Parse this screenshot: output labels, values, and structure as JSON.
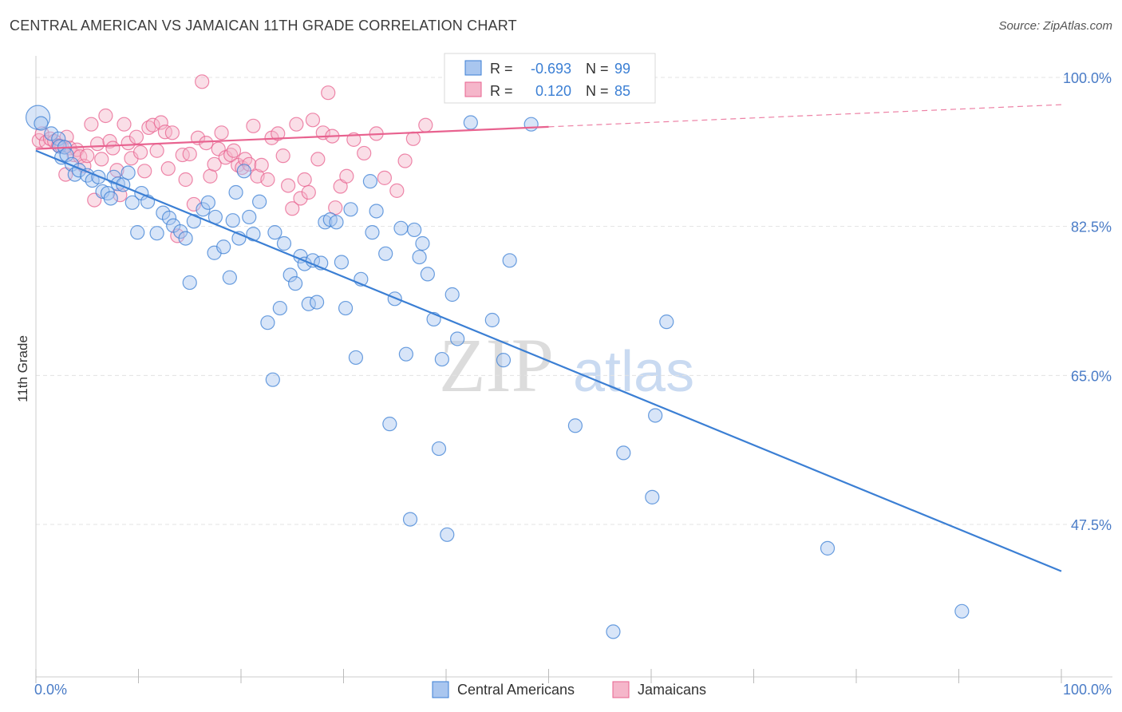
{
  "title": "CENTRAL AMERICAN VS JAMAICAN 11TH GRADE CORRELATION CHART",
  "source": "Source: ZipAtlas.com",
  "watermark": {
    "zip": "ZIP",
    "atlas": "atlas"
  },
  "colors": {
    "blue": "#3b7fd4",
    "pink": "#e8628f",
    "blue_fill": "#a9c6ef",
    "pink_fill": "#f5b6ca",
    "tick_label": "#4a7cc7"
  },
  "chart_data": {
    "type": "scatter",
    "xlabel": "",
    "ylabel": "11th Grade",
    "xlim": [
      0,
      100
    ],
    "ylim": [
      30,
      100
    ],
    "x_tick_labels": [
      "0.0%",
      "100.0%"
    ],
    "y_ticks": [
      47.5,
      65.0,
      82.5,
      100.0
    ],
    "y_tick_labels": [
      "47.5%",
      "65.0%",
      "82.5%",
      "100.0%"
    ],
    "grid": true,
    "legend_top": [
      {
        "r_label": "R =",
        "r_value": "-0.693",
        "n_label": "N =",
        "n_value": "99"
      },
      {
        "r_label": "R =",
        "r_value": "0.120",
        "n_label": "N =",
        "n_value": "85"
      }
    ],
    "legend_bottom": [
      "Central Americans",
      "Jamaicans"
    ],
    "series": [
      {
        "name": "Central Americans",
        "color": "#3b7fd4",
        "trend": {
          "x": [
            0,
            100
          ],
          "y": [
            91.4,
            42.0
          ]
        },
        "points": [
          [
            0.2,
            95.3
          ],
          [
            0.5,
            94.6
          ],
          [
            1.5,
            93.4
          ],
          [
            2.2,
            92.8
          ],
          [
            2.3,
            91.9
          ],
          [
            2.5,
            90.6
          ],
          [
            2.8,
            91.8
          ],
          [
            3.0,
            90.9
          ],
          [
            3.5,
            89.8
          ],
          [
            3.8,
            88.6
          ],
          [
            4.2,
            89.1
          ],
          [
            5.0,
            88.5
          ],
          [
            5.5,
            87.9
          ],
          [
            6.1,
            88.3
          ],
          [
            6.5,
            86.6
          ],
          [
            7.0,
            86.4
          ],
          [
            7.3,
            85.8
          ],
          [
            7.6,
            88.3
          ],
          [
            8.0,
            87.5
          ],
          [
            8.5,
            87.4
          ],
          [
            9.0,
            88.8
          ],
          [
            9.4,
            85.3
          ],
          [
            9.9,
            81.8
          ],
          [
            10.3,
            86.4
          ],
          [
            10.9,
            85.4
          ],
          [
            11.8,
            81.7
          ],
          [
            12.4,
            84.1
          ],
          [
            13.0,
            83.5
          ],
          [
            13.4,
            82.6
          ],
          [
            14.1,
            81.9
          ],
          [
            14.6,
            81.1
          ],
          [
            15.0,
            75.9
          ],
          [
            15.4,
            83.1
          ],
          [
            16.3,
            84.5
          ],
          [
            16.8,
            85.3
          ],
          [
            17.4,
            79.4
          ],
          [
            17.5,
            83.6
          ],
          [
            18.3,
            80.1
          ],
          [
            18.9,
            76.5
          ],
          [
            19.2,
            83.2
          ],
          [
            19.5,
            86.5
          ],
          [
            19.8,
            81.1
          ],
          [
            20.3,
            89.0
          ],
          [
            20.8,
            83.6
          ],
          [
            21.2,
            81.6
          ],
          [
            21.8,
            85.4
          ],
          [
            22.6,
            71.2
          ],
          [
            23.1,
            64.5
          ],
          [
            23.3,
            81.8
          ],
          [
            23.8,
            72.9
          ],
          [
            24.2,
            80.5
          ],
          [
            24.8,
            76.8
          ],
          [
            25.3,
            75.8
          ],
          [
            25.8,
            79.0
          ],
          [
            26.2,
            78.1
          ],
          [
            26.6,
            73.4
          ],
          [
            27.0,
            78.5
          ],
          [
            27.4,
            73.6
          ],
          [
            27.8,
            78.2
          ],
          [
            28.2,
            83.0
          ],
          [
            28.7,
            83.3
          ],
          [
            29.3,
            83.0
          ],
          [
            29.8,
            78.3
          ],
          [
            30.2,
            72.9
          ],
          [
            30.7,
            84.5
          ],
          [
            31.2,
            67.1
          ],
          [
            31.7,
            76.3
          ],
          [
            32.6,
            87.8
          ],
          [
            32.8,
            81.8
          ],
          [
            33.2,
            84.3
          ],
          [
            34.1,
            79.3
          ],
          [
            34.5,
            59.3
          ],
          [
            35.0,
            74.0
          ],
          [
            35.6,
            82.3
          ],
          [
            36.1,
            67.5
          ],
          [
            36.5,
            48.1
          ],
          [
            36.9,
            82.1
          ],
          [
            37.4,
            78.9
          ],
          [
            37.7,
            80.5
          ],
          [
            38.2,
            76.9
          ],
          [
            38.8,
            71.6
          ],
          [
            39.3,
            56.4
          ],
          [
            39.6,
            66.9
          ],
          [
            40.1,
            46.3
          ],
          [
            40.6,
            74.5
          ],
          [
            41.1,
            69.3
          ],
          [
            42.4,
            94.7
          ],
          [
            44.5,
            71.5
          ],
          [
            45.6,
            66.8
          ],
          [
            46.2,
            78.5
          ],
          [
            48.3,
            94.5
          ],
          [
            49.0,
            99.0
          ],
          [
            52.6,
            59.1
          ],
          [
            57.3,
            55.9
          ],
          [
            60.1,
            50.7
          ],
          [
            60.4,
            60.3
          ],
          [
            61.5,
            71.3
          ],
          [
            77.2,
            44.7
          ],
          [
            90.3,
            37.3
          ],
          [
            56.3,
            34.9
          ]
        ]
      },
      {
        "name": "Jamaicans",
        "color": "#e8628f",
        "trend": {
          "x": [
            0,
            50
          ],
          "y": [
            91.6,
            94.2
          ]
        },
        "trend_dashed": {
          "x": [
            50,
            100
          ],
          "y": [
            94.2,
            96.8
          ]
        },
        "points": [
          [
            0.3,
            92.6
          ],
          [
            0.6,
            93.4
          ],
          [
            1.0,
            92.4
          ],
          [
            1.4,
            92.8
          ],
          [
            1.8,
            92.5
          ],
          [
            2.2,
            92.0
          ],
          [
            2.5,
            91.9
          ],
          [
            2.9,
            88.6
          ],
          [
            3.0,
            93.0
          ],
          [
            3.3,
            91.7
          ],
          [
            3.7,
            90.9
          ],
          [
            4.0,
            91.5
          ],
          [
            4.3,
            90.7
          ],
          [
            4.7,
            89.6
          ],
          [
            5.0,
            90.8
          ],
          [
            5.4,
            94.5
          ],
          [
            5.7,
            85.6
          ],
          [
            6.0,
            92.2
          ],
          [
            6.4,
            90.4
          ],
          [
            6.8,
            95.5
          ],
          [
            7.2,
            92.5
          ],
          [
            7.5,
            91.7
          ],
          [
            7.9,
            89.1
          ],
          [
            8.2,
            86.2
          ],
          [
            8.6,
            94.5
          ],
          [
            9.0,
            92.3
          ],
          [
            9.3,
            90.5
          ],
          [
            9.8,
            93.0
          ],
          [
            10.2,
            91.2
          ],
          [
            10.6,
            89.0
          ],
          [
            11.0,
            94.1
          ],
          [
            11.4,
            94.4
          ],
          [
            11.8,
            91.4
          ],
          [
            12.2,
            94.7
          ],
          [
            12.6,
            93.6
          ],
          [
            12.9,
            89.3
          ],
          [
            13.3,
            93.5
          ],
          [
            13.8,
            81.4
          ],
          [
            14.3,
            90.9
          ],
          [
            14.6,
            88.0
          ],
          [
            15.0,
            91.0
          ],
          [
            15.4,
            85.1
          ],
          [
            15.8,
            92.9
          ],
          [
            16.2,
            99.5
          ],
          [
            16.6,
            92.3
          ],
          [
            17.0,
            88.4
          ],
          [
            17.4,
            89.8
          ],
          [
            17.8,
            91.6
          ],
          [
            18.1,
            93.5
          ],
          [
            18.5,
            90.6
          ],
          [
            19.0,
            90.9
          ],
          [
            19.3,
            91.4
          ],
          [
            19.7,
            89.7
          ],
          [
            20.1,
            89.4
          ],
          [
            20.4,
            90.4
          ],
          [
            20.8,
            89.8
          ],
          [
            21.2,
            94.3
          ],
          [
            21.6,
            88.4
          ],
          [
            22.0,
            89.7
          ],
          [
            22.6,
            88.0
          ],
          [
            23.0,
            92.9
          ],
          [
            23.6,
            93.4
          ],
          [
            24.1,
            90.8
          ],
          [
            24.6,
            87.3
          ],
          [
            25.0,
            84.6
          ],
          [
            25.4,
            94.5
          ],
          [
            25.8,
            85.8
          ],
          [
            26.2,
            88.0
          ],
          [
            26.6,
            86.5
          ],
          [
            27.0,
            95.0
          ],
          [
            27.5,
            90.4
          ],
          [
            28.0,
            93.5
          ],
          [
            28.5,
            98.2
          ],
          [
            28.9,
            93.1
          ],
          [
            29.2,
            84.7
          ],
          [
            29.7,
            87.2
          ],
          [
            30.3,
            88.4
          ],
          [
            31.0,
            92.7
          ],
          [
            32.0,
            91.1
          ],
          [
            33.2,
            93.4
          ],
          [
            34.0,
            88.2
          ],
          [
            35.2,
            86.7
          ],
          [
            36.0,
            90.2
          ],
          [
            36.8,
            92.8
          ],
          [
            38.0,
            94.4
          ]
        ]
      }
    ]
  }
}
